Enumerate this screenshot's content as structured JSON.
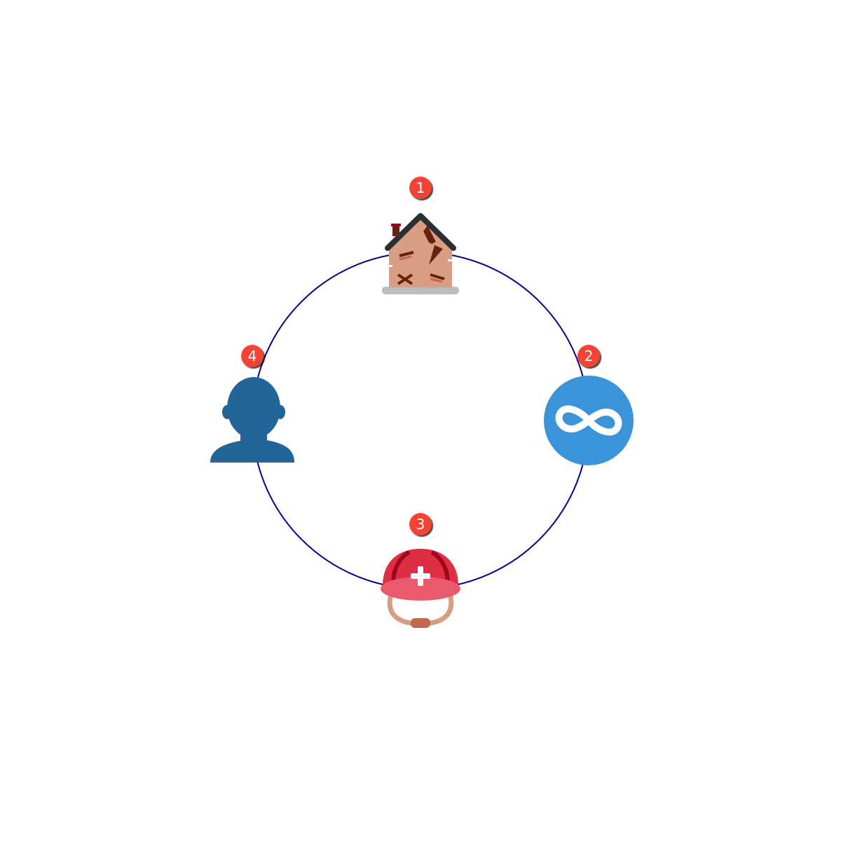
{
  "diagram": {
    "type": "cycle",
    "ring_color": "#00008b",
    "badge_color": "#f44336",
    "nodes": [
      {
        "number": "1",
        "icon": "derelict-house-icon"
      },
      {
        "number": "2",
        "icon": "infinity-icon"
      },
      {
        "number": "3",
        "icon": "rescue-worker-helmet-icon"
      },
      {
        "number": "4",
        "icon": "person-silhouette-icon"
      }
    ]
  }
}
